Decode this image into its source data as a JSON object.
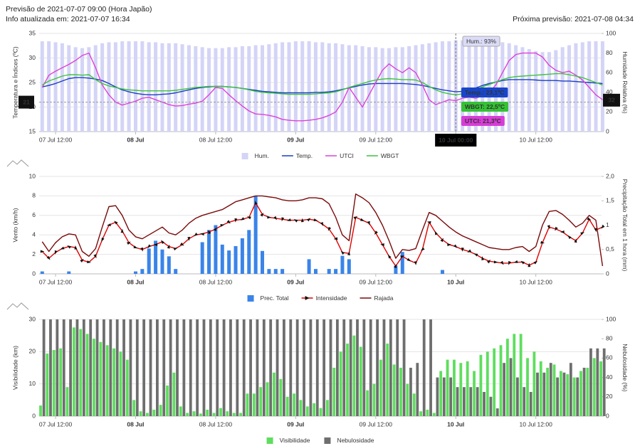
{
  "header": {
    "forecast": "Previsão de 2021-07-07 09:00 (Hora Japão)",
    "updated": "Info atualizada em: 2021-07-07 16:34",
    "next": "Próxima previsão: 2021-07-08 04:34"
  },
  "chart_data": [
    {
      "type": "combo",
      "ylabel": "Temperatura e Índices (ºC)",
      "y2label": "Humidade Relativa (%)",
      "ylim": [
        15,
        35
      ],
      "yticks": [
        15,
        20,
        25,
        30,
        35
      ],
      "y2lim": [
        0,
        100
      ],
      "y2ticks": [
        0,
        20,
        40,
        60,
        80,
        100
      ],
      "grid": true,
      "xticks": [
        {
          "value": 2,
          "label": "07 Jul 12:00"
        },
        {
          "value": 14,
          "label": "08 Jul"
        },
        {
          "value": 26,
          "label": "08 Jul 12:00"
        },
        {
          "value": 38,
          "label": "09 Jul"
        },
        {
          "value": 50,
          "label": "09 Jul 12:00"
        },
        {
          "value": 62,
          "label": "10 Jul"
        },
        {
          "value": 74,
          "label": "10 Jul 12:00"
        }
      ],
      "series": [
        {
          "name": "Hum.",
          "type": "bar",
          "axis": "y2",
          "color": "#d4d4f7",
          "values": [
            92,
            92,
            91,
            90,
            88,
            86,
            85,
            86,
            88,
            90,
            91,
            91,
            92,
            92,
            92,
            92,
            91,
            91,
            90,
            90,
            90,
            89,
            88,
            87,
            86,
            85,
            85,
            85,
            86,
            86,
            87,
            87,
            88,
            88,
            89,
            90,
            91,
            91,
            92,
            92,
            92,
            91,
            91,
            90,
            90,
            89,
            88,
            88,
            87,
            86,
            86,
            85,
            85,
            86,
            86,
            87,
            88,
            89,
            90,
            91,
            92,
            92,
            93,
            93,
            93,
            93,
            93,
            92,
            92,
            91,
            90,
            88,
            86,
            84,
            82,
            81,
            81,
            83,
            86,
            88,
            90,
            91,
            92,
            92,
            92
          ]
        },
        {
          "name": "Temp.",
          "type": "line",
          "color": "#1a3ec4",
          "values": [
            24.1,
            24.4,
            24.8,
            25.3,
            25.8,
            26.0,
            26.0,
            25.9,
            25.7,
            25.4,
            24.8,
            24.1,
            23.5,
            23.1,
            22.8,
            22.6,
            22.5,
            22.5,
            22.6,
            22.7,
            22.9,
            23.2,
            23.5,
            23.8,
            24.0,
            24.1,
            24.2,
            24.2,
            24.1,
            24.0,
            23.8,
            23.6,
            23.4,
            23.2,
            23.1,
            23.0,
            22.9,
            22.9,
            22.9,
            22.9,
            22.9,
            23.0,
            23.0,
            23.1,
            23.3,
            23.6,
            23.9,
            24.2,
            24.5,
            24.7,
            24.8,
            24.8,
            24.8,
            24.8,
            24.8,
            24.7,
            24.6,
            24.4,
            24.1,
            23.8,
            23.5,
            23.3,
            23.1,
            23.2,
            23.5,
            23.9,
            24.4,
            24.8,
            25.1,
            25.4,
            25.6,
            25.6,
            25.6,
            25.6,
            25.5,
            25.4,
            25.4,
            25.4,
            25.3,
            25.3,
            25.2,
            25.1,
            25.0,
            24.9,
            24.8
          ]
        },
        {
          "name": "UTCI",
          "type": "line",
          "color": "#e040d8",
          "values": [
            24,
            26.5,
            27.3,
            28,
            28.7,
            29.5,
            30.5,
            31,
            28,
            24.5,
            22.5,
            21,
            20.4,
            20.8,
            21.2,
            21.8,
            22,
            21.5,
            21,
            20.5,
            20.2,
            20.3,
            20.6,
            20.8,
            21.2,
            22.5,
            24,
            23.8,
            22.5,
            21.3,
            20.2,
            19.2,
            18.6,
            18.5,
            18.3,
            18,
            17.5,
            17.3,
            17.2,
            17.2,
            17.3,
            17.5,
            17.8,
            18.3,
            19,
            21,
            24,
            22,
            20,
            22.5,
            25,
            27.5,
            28.8,
            27.8,
            27,
            28,
            27,
            24.5,
            21.5,
            20.5,
            21,
            21.5,
            21.3,
            21.8,
            22,
            21.8,
            22.3,
            23,
            24.5,
            27,
            29.5,
            30.7,
            31,
            31,
            31,
            30.2,
            28.5,
            27.5,
            27,
            27.3,
            26.5,
            25.5,
            24,
            22.5,
            21.5
          ]
        },
        {
          "name": "WBGT",
          "type": "line",
          "color": "#3cc43c",
          "values": [
            24.5,
            25.3,
            25.8,
            26.3,
            26.6,
            26.6,
            26.5,
            26.6,
            25.6,
            24.8,
            24.3,
            24.0,
            23.7,
            23.5,
            23.4,
            23.3,
            23.3,
            23.3,
            23.3,
            23.3,
            23.4,
            23.6,
            23.8,
            24.0,
            24.1,
            24.2,
            24.2,
            24.2,
            24.1,
            24.0,
            23.8,
            23.5,
            23.2,
            23.0,
            22.9,
            22.8,
            22.7,
            22.6,
            22.6,
            22.6,
            22.6,
            22.7,
            22.8,
            22.9,
            23.1,
            23.5,
            24.0,
            24.4,
            24.8,
            25.2,
            25.5,
            25.7,
            25.8,
            25.7,
            25.6,
            25.6,
            25.5,
            25.0,
            24.2,
            23.5,
            23.0,
            22.7,
            22.5,
            22.7,
            23.1,
            23.6,
            24.1,
            24.6,
            25.1,
            25.6,
            26.0,
            26.2,
            26.3,
            26.4,
            26.5,
            26.6,
            26.7,
            26.8,
            26.8,
            26.6,
            26.3,
            26.0,
            25.5,
            25.0,
            24.5
          ]
        }
      ],
      "crosshair": {
        "y": 21,
        "y2": 32
      },
      "tooltip": {
        "title": "10 Jul 00:00",
        "items": [
          "Hum.: 93%",
          "Temp.: 23,1ºC",
          "WBGT: 22,5ºC",
          "UTCI: 21,3ºC"
        ]
      }
    },
    {
      "type": "combo",
      "ylabel": "Vento (km/h)",
      "y2label": "Precipitação Total em 1 hora (mm)",
      "ylim": [
        0,
        10
      ],
      "yticks": [
        0,
        2,
        4,
        6,
        8,
        10
      ],
      "y2lim": [
        0,
        2
      ],
      "y2ticks": [
        0,
        {
          "value": 0.5,
          "label": "0,5"
        },
        1,
        {
          "value": 1.5,
          "label": "1,5"
        },
        {
          "value": 2,
          "label": "2,0"
        }
      ],
      "grid": true,
      "xticks": [
        {
          "value": 2,
          "label": "07 Jul 12:00"
        },
        {
          "value": 14,
          "label": "08 Jul"
        },
        {
          "value": 26,
          "label": "08 Jul 12:00"
        },
        {
          "value": 38,
          "label": "09 Jul"
        },
        {
          "value": 50,
          "label": "09 Jul 12:00"
        },
        {
          "value": 62,
          "label": "10 Jul"
        },
        {
          "value": 74,
          "label": "10 Jul 12:00"
        }
      ],
      "series": [
        {
          "name": "Prec. Total",
          "type": "bar",
          "axis": "y2",
          "color": "#3a84e8",
          "values": [
            0.05,
            0,
            0,
            0,
            0.05,
            0,
            0,
            0,
            0,
            0,
            0,
            0,
            0,
            0,
            0.05,
            0.1,
            0.52,
            0.68,
            0.5,
            0.36,
            0.1,
            0,
            0,
            0,
            0.65,
            0.9,
            1.0,
            0.6,
            0.48,
            0.57,
            0.73,
            0.9,
            1.6,
            0.47,
            0.1,
            0.1,
            0.1,
            0,
            0,
            0,
            0.3,
            0.1,
            0,
            0.1,
            0.1,
            0.37,
            0.3,
            0,
            0,
            0,
            0,
            0,
            0,
            0.17,
            0.45,
            0,
            0,
            0,
            0,
            0,
            0.08,
            0,
            0,
            0,
            0,
            0,
            0,
            0,
            0,
            0,
            0,
            0,
            0,
            0,
            0,
            0,
            0,
            0,
            0,
            0,
            0,
            0,
            0,
            0,
            0
          ]
        },
        {
          "name": "Intensidade",
          "type": "line",
          "arrows": true,
          "color": "#e00000",
          "values": [
            2.3,
            1.6,
            2.2,
            2.6,
            2.8,
            2.7,
            1.4,
            1.2,
            1.8,
            3.5,
            5.0,
            5.3,
            4.4,
            3.2,
            2.7,
            2.5,
            2.8,
            3.0,
            3.3,
            2.8,
            2.6,
            3.0,
            3.6,
            4.0,
            4.1,
            4.3,
            4.6,
            5.0,
            5.3,
            5.5,
            5.6,
            5.8,
            7.3,
            6.1,
            5.8,
            5.7,
            5.6,
            5.5,
            5.5,
            5.5,
            5.6,
            5.5,
            5.1,
            4.6,
            3.6,
            2.2,
            2.1,
            5.8,
            5.5,
            5.2,
            4.2,
            3.0,
            1.8,
            0.8,
            1.8,
            1.4,
            1.1,
            2.5,
            5.3,
            4.2,
            3.5,
            3.0,
            2.8,
            2.5,
            2.3,
            2.0,
            1.6,
            1.3,
            1.2,
            1.1,
            1.1,
            1.2,
            1.2,
            0.9,
            1.2,
            3.2,
            4.8,
            4.6,
            4.3,
            3.8,
            3.4,
            4.2,
            5.6,
            4.5,
            4.8
          ]
        },
        {
          "name": "Rajada",
          "type": "line",
          "color": "#7a0a0a",
          "values": [
            3.3,
            2.3,
            3.2,
            3.8,
            4.1,
            4.0,
            2.3,
            1.8,
            2.6,
            4.8,
            6.9,
            7.0,
            6.0,
            4.5,
            3.8,
            3.6,
            4.0,
            4.4,
            4.8,
            4.2,
            4.0,
            4.5,
            5.2,
            5.7,
            6.0,
            6.2,
            6.4,
            6.6,
            7.0,
            7.4,
            7.6,
            7.8,
            8.0,
            8.0,
            7.9,
            7.8,
            7.6,
            7.5,
            7.5,
            7.6,
            7.8,
            7.8,
            7.7,
            7.2,
            5.8,
            4.0,
            3.4,
            8.2,
            7.8,
            7.3,
            6.3,
            5.0,
            3.4,
            1.6,
            2.5,
            2.4,
            2.6,
            4.5,
            6.3,
            6.0,
            5.4,
            4.8,
            4.3,
            3.9,
            3.6,
            3.3,
            3.0,
            2.7,
            2.6,
            2.5,
            2.5,
            2.7,
            2.8,
            2.3,
            2.8,
            5.0,
            6.4,
            6.5,
            6.1,
            5.5,
            4.8,
            5.2,
            6.0,
            5.5,
            0.8
          ]
        }
      ]
    },
    {
      "type": "combo",
      "ylabel": "Visibilidade (km)",
      "y2label": "Nebulosidade (%)",
      "ylim": [
        0,
        30
      ],
      "yticks": [
        0,
        10,
        20,
        30
      ],
      "y2lim": [
        0,
        100
      ],
      "y2ticks": [
        0,
        20,
        40,
        60,
        80,
        100
      ],
      "grid": true,
      "xticks": [
        {
          "value": 2,
          "label": "07 Jul 12:00"
        },
        {
          "value": 14,
          "label": "08 Jul"
        },
        {
          "value": 26,
          "label": "08 Jul 12:00"
        },
        {
          "value": 38,
          "label": "09 Jul"
        },
        {
          "value": 50,
          "label": "09 Jul 12:00"
        },
        {
          "value": 62,
          "label": "10 Jul"
        },
        {
          "value": 74,
          "label": "10 Jul 12:00"
        }
      ],
      "series": [
        {
          "name": "Visibilidade",
          "type": "bar",
          "color": "#5ede5e",
          "values": [
            3.3,
            19.4,
            20.5,
            21,
            9,
            27.5,
            27,
            25.5,
            24,
            23,
            22,
            21,
            20,
            17.5,
            5,
            1.5,
            1,
            2,
            3.5,
            9.5,
            13.5,
            3,
            1,
            1.5,
            0.8,
            2,
            1,
            2.5,
            1.5,
            1,
            1,
            7,
            7,
            9,
            10.5,
            13.5,
            11.5,
            6,
            7,
            5,
            3,
            4,
            2.5,
            5,
            15,
            20,
            22.5,
            25,
            21.5,
            8,
            10,
            17.5,
            22.5,
            16,
            15,
            10,
            7,
            1.5,
            2,
            1,
            14,
            17.5,
            17.5,
            16.5,
            17,
            14,
            19,
            20,
            21,
            22,
            24,
            25.5,
            25.5,
            18,
            20,
            17,
            15,
            16,
            14,
            13,
            12,
            14,
            15,
            18,
            17
          ]
        },
        {
          "name": "Nebulosidade",
          "type": "bar",
          "axis": "y2",
          "color": "#6e6e6e",
          "values": [
            100,
            100,
            100,
            100,
            100,
            100,
            100,
            100,
            100,
            100,
            100,
            100,
            100,
            100,
            100,
            100,
            100,
            100,
            100,
            100,
            100,
            100,
            100,
            100,
            100,
            100,
            100,
            100,
            100,
            100,
            100,
            100,
            100,
            100,
            100,
            100,
            100,
            100,
            100,
            100,
            100,
            100,
            100,
            100,
            100,
            100,
            100,
            100,
            100,
            100,
            100,
            100,
            100,
            100,
            100,
            50,
            55,
            100,
            100,
            40,
            40,
            40,
            30,
            30,
            30,
            30,
            25,
            20,
            8,
            55,
            60,
            40,
            30,
            25,
            45,
            45,
            55,
            40,
            45,
            55,
            40,
            50,
            70,
            70,
            70
          ]
        }
      ]
    }
  ]
}
